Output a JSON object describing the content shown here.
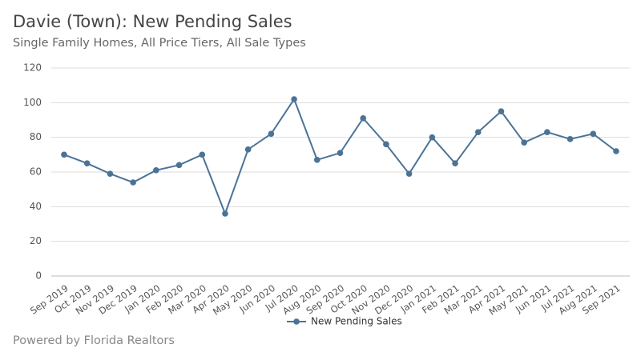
{
  "chart_data": {
    "type": "line",
    "title": "Davie (Town): New Pending Sales",
    "subtitle": "Single Family Homes, All Price Tiers, All Sale Types",
    "categories": [
      "Sep 2019",
      "Oct 2019",
      "Nov 2019",
      "Dec 2019",
      "Jan 2020",
      "Feb 2020",
      "Mar 2020",
      "Apr 2020",
      "May 2020",
      "Jun 2020",
      "Jul 2020",
      "Aug 2020",
      "Sep 2020",
      "Oct 2020",
      "Nov 2020",
      "Dec 2020",
      "Jan 2021",
      "Feb 2021",
      "Mar 2021",
      "Apr 2021",
      "May 2021",
      "Jun 2021",
      "Jul 2021",
      "Aug 2021",
      "Sep 2021"
    ],
    "series": [
      {
        "name": "New Pending Sales",
        "color": "#4a7396",
        "values": [
          70,
          65,
          59,
          54,
          61,
          64,
          70,
          36,
          73,
          82,
          102,
          67,
          71,
          91,
          76,
          59,
          80,
          65,
          83,
          95,
          77,
          83,
          79,
          82,
          72
        ]
      }
    ],
    "ylim": [
      0,
      120
    ],
    "yticks": [
      0,
      20,
      40,
      60,
      80,
      100,
      120
    ],
    "grid": true,
    "legend": "bottom",
    "footer": "Powered by Florida Realtors"
  }
}
